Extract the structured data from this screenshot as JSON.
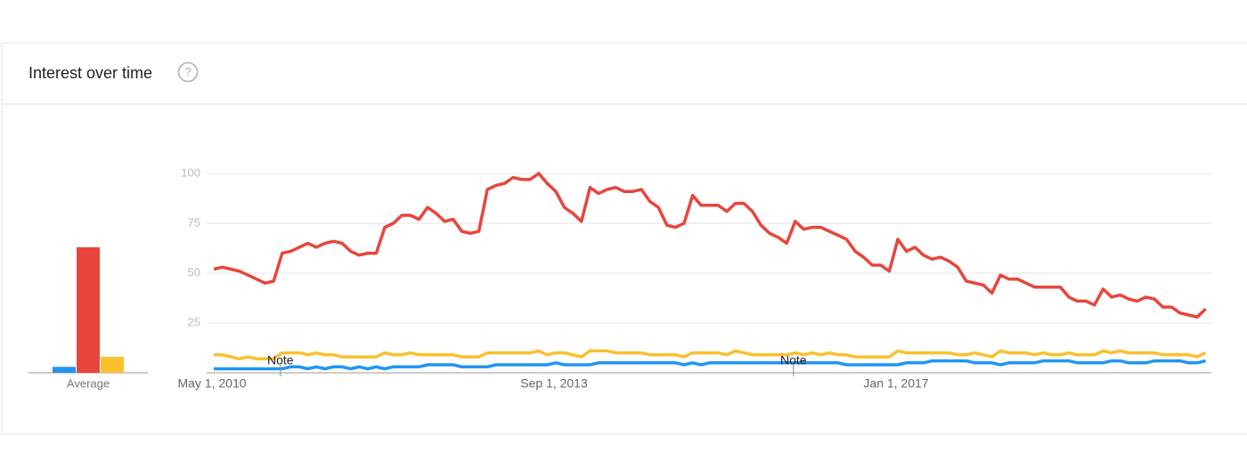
{
  "header": {
    "title": "Interest over time",
    "help_icon": "?"
  },
  "chart_data": [
    {
      "type": "bar",
      "categories": [
        "Average"
      ],
      "ylim": [
        0,
        100
      ],
      "series": [
        {
          "color": "#2196f3",
          "values": [
            3
          ]
        },
        {
          "color": "#e8453c",
          "values": [
            63
          ]
        },
        {
          "color": "#fbc02d",
          "values": [
            8
          ]
        }
      ]
    },
    {
      "type": "line",
      "ylim": [
        0,
        100
      ],
      "yticks": [
        25,
        50,
        75,
        100
      ],
      "grid": true,
      "categories": [
        "May 1, 2010",
        null,
        null,
        null,
        null,
        null,
        null,
        null,
        null,
        null,
        null,
        null,
        null,
        null,
        null,
        null,
        null,
        null,
        null,
        null,
        null,
        null,
        null,
        null,
        null,
        null,
        null,
        null,
        null,
        null,
        null,
        null,
        null,
        null,
        null,
        null,
        null,
        null,
        null,
        null,
        "Sep 1, 2013",
        null,
        null,
        null,
        null,
        null,
        null,
        null,
        null,
        null,
        null,
        null,
        null,
        null,
        null,
        null,
        null,
        null,
        null,
        null,
        null,
        null,
        null,
        null,
        null,
        null,
        null,
        null,
        null,
        null,
        null,
        null,
        null,
        null,
        null,
        null,
        null,
        null,
        null,
        null,
        "Jan 1, 2017",
        null,
        null,
        null,
        null,
        null,
        null,
        null,
        null,
        null,
        null,
        null,
        null,
        null,
        null,
        null,
        null,
        null,
        null,
        null,
        null,
        null,
        null,
        null,
        null,
        null,
        null,
        null,
        null,
        null,
        null,
        null,
        null,
        null,
        null,
        null,
        null
      ],
      "annotations": [
        {
          "text": "Note",
          "index": 8
        },
        {
          "text": "Note",
          "index": 68
        }
      ],
      "series": [
        {
          "color": "#fbc02d",
          "values": [
            9,
            9,
            8,
            7,
            8,
            7,
            7,
            7,
            10,
            10,
            10,
            9,
            10,
            9,
            9,
            8,
            8,
            8,
            8,
            8,
            10,
            9,
            9,
            10,
            9,
            9,
            9,
            9,
            9,
            8,
            8,
            8,
            10,
            10,
            10,
            10,
            10,
            10,
            11,
            9,
            10,
            10,
            9,
            8,
            11,
            11,
            11,
            10,
            10,
            10,
            10,
            9,
            9,
            9,
            9,
            8,
            10,
            10,
            10,
            10,
            9,
            11,
            10,
            9,
            9,
            9,
            9,
            9,
            10,
            9,
            10,
            9,
            10,
            9,
            9,
            8,
            8,
            8,
            8,
            8,
            11,
            10,
            10,
            10,
            10,
            10,
            10,
            9,
            9,
            10,
            9,
            8,
            11,
            10,
            10,
            10,
            9,
            10,
            9,
            9,
            10,
            9,
            9,
            9,
            11,
            10,
            11,
            10,
            10,
            10,
            10,
            9,
            9,
            9,
            9,
            8,
            10
          ]
        },
        {
          "color": "#2196f3",
          "values": [
            2,
            2,
            2,
            2,
            2,
            2,
            2,
            2,
            2,
            3,
            3,
            2,
            3,
            2,
            3,
            3,
            2,
            3,
            2,
            3,
            2,
            3,
            3,
            3,
            3,
            4,
            4,
            4,
            4,
            3,
            3,
            3,
            3,
            4,
            4,
            4,
            4,
            4,
            4,
            4,
            5,
            4,
            4,
            4,
            4,
            5,
            5,
            5,
            5,
            5,
            5,
            5,
            5,
            5,
            5,
            4,
            5,
            4,
            5,
            5,
            5,
            5,
            5,
            5,
            5,
            5,
            5,
            5,
            5,
            5,
            5,
            5,
            5,
            5,
            4,
            4,
            4,
            4,
            4,
            4,
            4,
            5,
            5,
            5,
            6,
            6,
            6,
            6,
            6,
            5,
            5,
            5,
            4,
            5,
            5,
            5,
            5,
            6,
            6,
            6,
            6,
            5,
            5,
            5,
            5,
            6,
            6,
            5,
            5,
            5,
            6,
            6,
            6,
            6,
            5,
            5,
            6
          ]
        },
        {
          "color": "#e8453c",
          "values": [
            52,
            53,
            52,
            51,
            49,
            47,
            45,
            46,
            60,
            61,
            63,
            65,
            63,
            65,
            66,
            65,
            61,
            59,
            60,
            60,
            73,
            75,
            79,
            79,
            77,
            83,
            80,
            76,
            77,
            71,
            70,
            71,
            92,
            94,
            95,
            98,
            97,
            97,
            100,
            95,
            91,
            83,
            80,
            76,
            93,
            90,
            92,
            93,
            91,
            91,
            92,
            86,
            83,
            74,
            73,
            75,
            89,
            84,
            84,
            84,
            81,
            85,
            85,
            81,
            74,
            70,
            68,
            65,
            76,
            72,
            73,
            73,
            71,
            69,
            67,
            61,
            58,
            54,
            54,
            51,
            67,
            61,
            63,
            59,
            57,
            58,
            56,
            53,
            46,
            45,
            44,
            40,
            49,
            47,
            47,
            45,
            43,
            43,
            43,
            43,
            38,
            36,
            36,
            34,
            42,
            38,
            39,
            37,
            36,
            38,
            37,
            33,
            33,
            30,
            29,
            28,
            32
          ]
        }
      ]
    }
  ]
}
